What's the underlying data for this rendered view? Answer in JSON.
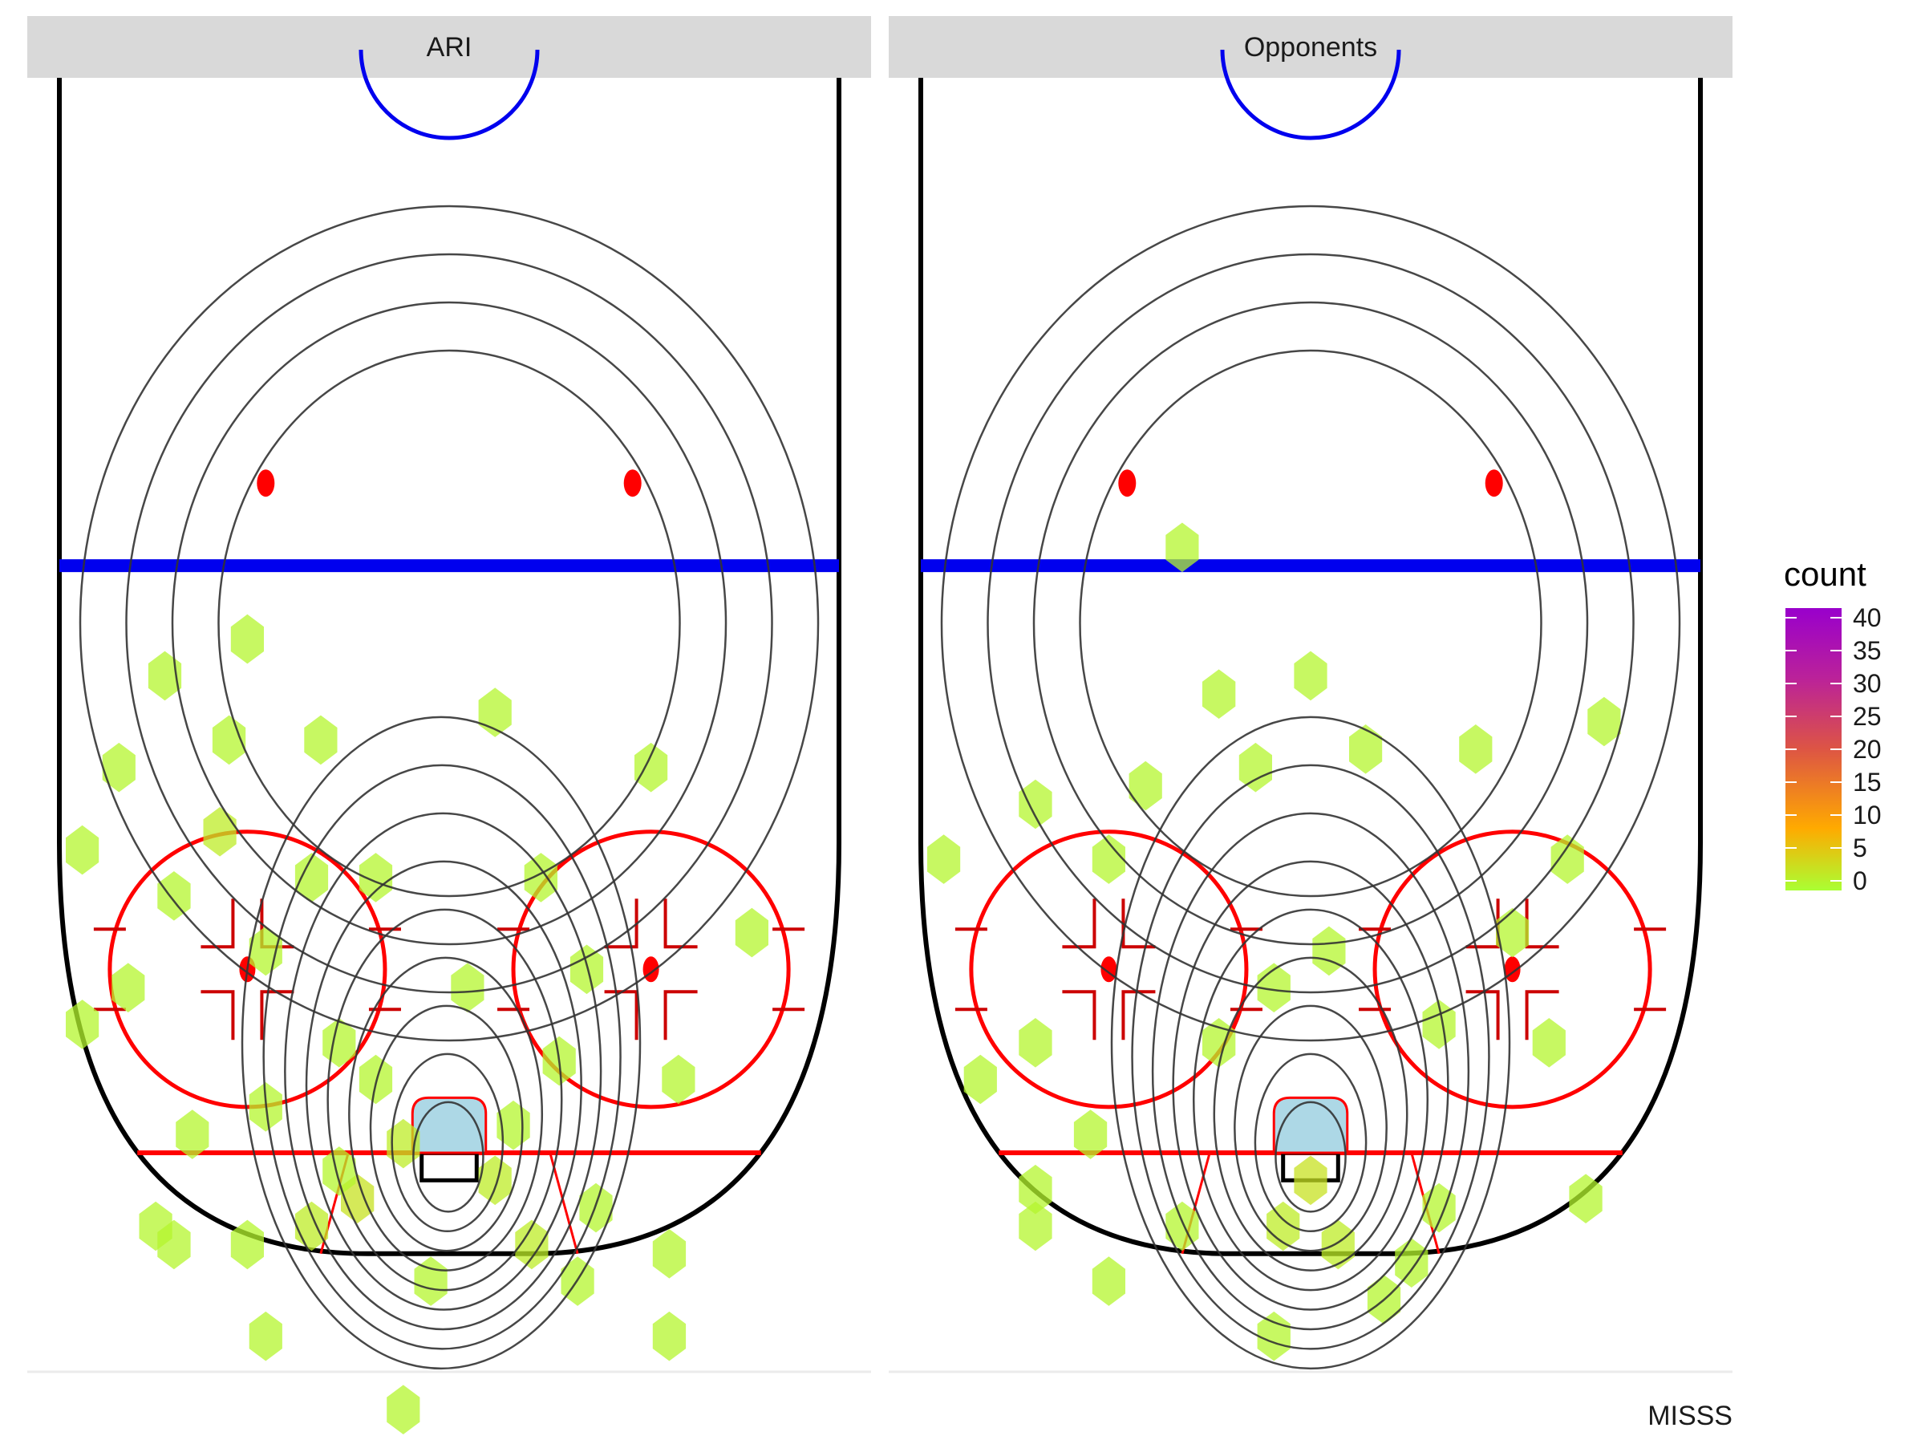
{
  "chart_data": {
    "type": "heatmap",
    "subtype": "hexbin-density-on-rink",
    "facets": [
      {
        "label": "ARI",
        "hexbins": [
          [
            5,
            -3,
            2
          ],
          [
            -10,
            -5,
            3
          ],
          [
            -15,
            -8,
            2
          ],
          [
            9,
            -10,
            2
          ],
          [
            -32,
            -8,
            1
          ],
          [
            -22,
            -10,
            1
          ],
          [
            24,
            -11,
            1
          ],
          [
            -5,
            1,
            2
          ],
          [
            7,
            3,
            1
          ],
          [
            -8,
            8,
            1
          ],
          [
            12,
            10,
            1
          ],
          [
            -28,
            2,
            1
          ],
          [
            -12,
            12,
            1
          ],
          [
            25,
            8,
            1
          ],
          [
            -35,
            18,
            1
          ],
          [
            2,
            18,
            1
          ],
          [
            15,
            20,
            1
          ],
          [
            -20,
            22,
            1
          ],
          [
            -30,
            28,
            1
          ],
          [
            33,
            24,
            1
          ],
          [
            -40,
            14,
            1
          ],
          [
            -25,
            35,
            2
          ],
          [
            10,
            30,
            1
          ],
          [
            -8,
            30,
            1
          ],
          [
            -36,
            42,
            1
          ],
          [
            -24,
            45,
            1
          ],
          [
            22,
            42,
            1
          ],
          [
            -14,
            45,
            1
          ],
          [
            5,
            48,
            1
          ],
          [
            -31,
            52,
            1
          ],
          [
            -22,
            56,
            1
          ],
          [
            -40,
            33,
            1
          ],
          [
            -15,
            30,
            1
          ],
          [
            24,
            -20,
            1
          ],
          [
            -20,
            -20,
            1
          ],
          [
            -5,
            -28,
            1
          ],
          [
            -30,
            -10,
            1
          ],
          [
            -12,
            -2,
            1
          ],
          [
            16,
            -6,
            1
          ],
          [
            -20,
            5,
            1
          ],
          [
            -2,
            -14,
            1
          ],
          [
            14,
            -14,
            1
          ]
        ],
        "contour_levels": 9
      },
      {
        "label": "Opponents",
        "hexbins": [
          [
            0,
            -3,
            3
          ],
          [
            -3,
            -8,
            2
          ],
          [
            3,
            -10,
            2
          ],
          [
            -14,
            -8,
            1
          ],
          [
            -30,
            -8,
            1
          ],
          [
            -30,
            -4,
            1
          ],
          [
            11,
            -12,
            1
          ],
          [
            30,
            -5,
            1
          ],
          [
            -24,
            2,
            1
          ],
          [
            -36,
            8,
            1
          ],
          [
            -10,
            12,
            1
          ],
          [
            14,
            14,
            1
          ],
          [
            -4,
            18,
            1
          ],
          [
            2,
            22,
            1
          ],
          [
            22,
            24,
            1
          ],
          [
            -22,
            32,
            1
          ],
          [
            28,
            32,
            1
          ],
          [
            -30,
            38,
            1
          ],
          [
            -18,
            40,
            1
          ],
          [
            -6,
            42,
            1
          ],
          [
            6,
            44,
            1
          ],
          [
            18,
            44,
            1
          ],
          [
            -10,
            50,
            1
          ],
          [
            0,
            52,
            1
          ],
          [
            32,
            47,
            1
          ],
          [
            -40,
            32,
            1
          ],
          [
            -14,
            66,
            1
          ],
          [
            -4,
            -20,
            1
          ],
          [
            -22,
            -14,
            1
          ],
          [
            14,
            -6,
            1
          ],
          [
            8,
            -16,
            1
          ],
          [
            -30,
            12,
            1
          ],
          [
            26,
            12,
            1
          ]
        ],
        "contour_levels": 9
      }
    ],
    "colorbar": {
      "title": "count",
      "ticks": [
        40,
        35,
        30,
        25,
        20,
        15,
        10,
        5,
        0
      ],
      "range": [
        0,
        40
      ],
      "colors": [
        "#aaff33",
        "#ff9900",
        "#cc3366",
        "#9900cc"
      ]
    },
    "xlabel": "",
    "ylabel": "",
    "caption": "MISSS"
  },
  "colors": {
    "strip_background": "#d9d9d9",
    "hex_fill": "#c6f55e",
    "contour": "#333333",
    "goal_line": "#ff0000",
    "blue_line": "#0000ee",
    "crease": "#add8e6",
    "boards": "#000000"
  }
}
